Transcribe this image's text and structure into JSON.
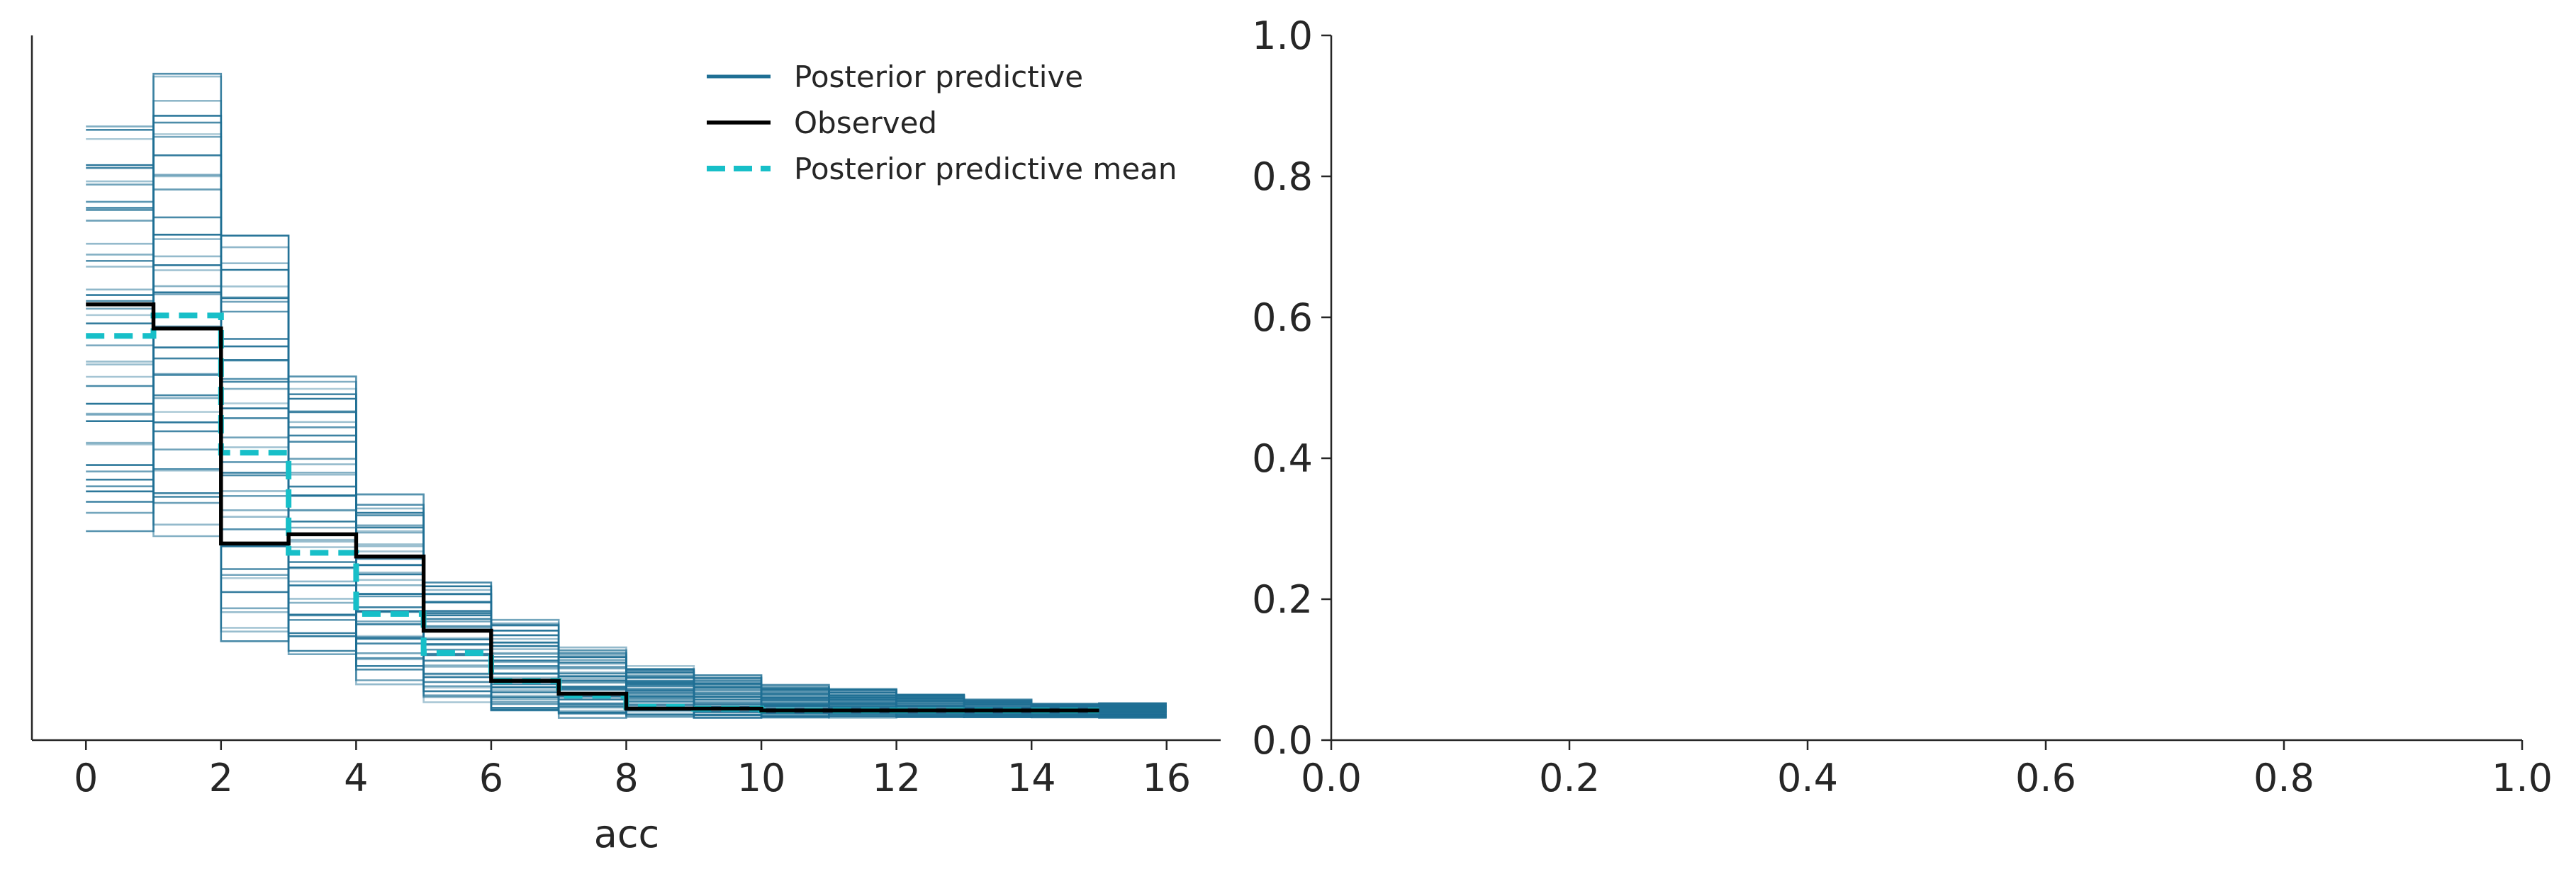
{
  "chart_data": [
    {
      "type": "histogram-step",
      "xlabel": "acc",
      "ylabel": "",
      "xlim": [
        -0.8,
        16.8
      ],
      "ylim": [
        0,
        0.38
      ],
      "y_axis_ticks_shown": false,
      "x_ticks": [
        0,
        2,
        4,
        6,
        8,
        10,
        12,
        14,
        16
      ],
      "x_tick_labels": [
        "0",
        "2",
        "4",
        "6",
        "8",
        "10",
        "12",
        "14",
        "16"
      ],
      "legend": {
        "placement": "top-right",
        "entries": [
          {
            "label": "Posterior predictive",
            "color": "#1f6f94",
            "style": "solid"
          },
          {
            "label": "Observed",
            "color": "#000000",
            "style": "solid"
          },
          {
            "label": "Posterior predictive mean",
            "color": "#17bfc8",
            "style": "dashed"
          }
        ]
      },
      "series": [
        {
          "name": "Observed",
          "color": "#000000",
          "bin_edges": [
            0,
            1,
            2,
            3,
            4,
            5,
            6,
            7,
            8,
            9,
            10,
            11,
            12,
            13,
            14,
            15
          ],
          "values": [
            0.235,
            0.222,
            0.106,
            0.111,
            0.099,
            0.059,
            0.032,
            0.025,
            0.017,
            0.017,
            0.016,
            0.016,
            0.016,
            0.016,
            0.016
          ]
        },
        {
          "name": "Posterior predictive mean",
          "color": "#17bfc8",
          "bin_edges": [
            0,
            1,
            2,
            3,
            4,
            5,
            6,
            7,
            8,
            9,
            10,
            11,
            12,
            13,
            14,
            15
          ],
          "values": [
            0.218,
            0.229,
            0.155,
            0.101,
            0.068,
            0.047,
            0.032,
            0.024,
            0.018,
            0.017,
            0.016,
            0.016,
            0.016,
            0.016,
            0.016
          ]
        },
        {
          "name": "Posterior predictive",
          "color": "#1f6f94",
          "draw_count": 40,
          "bin_edges": [
            0,
            1,
            2,
            3,
            4,
            5,
            6,
            7,
            8,
            9,
            10,
            11,
            12,
            13,
            14,
            15,
            16
          ],
          "lower": [
            0.11,
            0.11,
            0.05,
            0.045,
            0.03,
            0.02,
            0.015,
            0.012,
            0.012,
            0.012,
            0.012,
            0.012,
            0.012,
            0.012,
            0.012,
            0.012
          ],
          "upper": [
            0.335,
            0.365,
            0.275,
            0.2,
            0.135,
            0.085,
            0.065,
            0.05,
            0.04,
            0.035,
            0.03,
            0.028,
            0.025,
            0.022,
            0.02,
            0.02
          ]
        }
      ]
    },
    {
      "type": "empty",
      "xlim": [
        0.0,
        1.0
      ],
      "ylim": [
        0.0,
        1.0
      ],
      "x_tick_labels": [
        "0.0",
        "0.2",
        "0.4",
        "0.6",
        "0.8",
        "1.0"
      ],
      "y_tick_labels": [
        "0.0",
        "0.2",
        "0.4",
        "0.6",
        "0.8",
        "1.0"
      ]
    }
  ]
}
